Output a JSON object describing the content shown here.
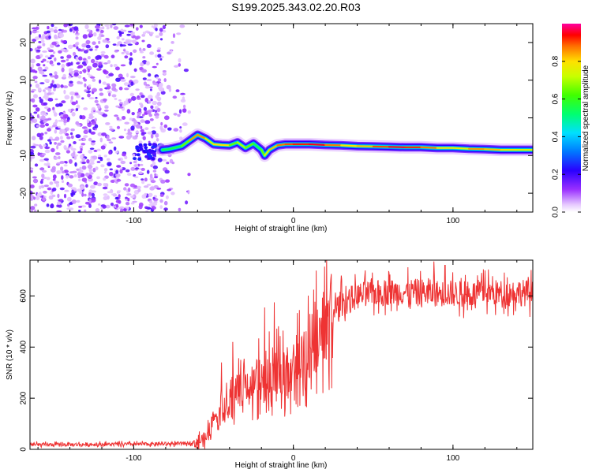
{
  "title": "S199.2025.343.02.20.R03",
  "chart_data": [
    {
      "type": "heatmap",
      "name": "spectrogram",
      "xlabel": "Height of straight line (km)",
      "ylabel": "Frequency (Hz)",
      "xlim": [
        -165,
        150
      ],
      "ylim": [
        -25,
        25
      ],
      "x_ticks": [
        -100,
        0,
        100
      ],
      "x_tick_labels": [
        "-100",
        "0",
        "100"
      ],
      "y_ticks": [
        -20,
        -10,
        0,
        10,
        20
      ],
      "y_tick_labels": [
        "-20",
        "-10",
        "0",
        "10",
        "20"
      ],
      "signal_onset_km": -82,
      "noise_region_km": [
        -165,
        -65
      ],
      "carrier_track": {
        "x": [
          -82,
          -78,
          -70,
          -65,
          -60,
          -55,
          -50,
          -45,
          -40,
          -35,
          -30,
          -25,
          -20,
          -18,
          -15,
          -10,
          -5,
          0,
          10,
          20,
          30,
          40,
          50,
          60,
          70,
          80,
          90,
          100,
          110,
          120,
          130,
          140,
          150
        ],
        "y": [
          -8.5,
          -8.3,
          -7.5,
          -6.0,
          -4.5,
          -5.5,
          -7.0,
          -7.2,
          -7.3,
          -6.5,
          -8.0,
          -6.8,
          -8.5,
          -10.0,
          -8.5,
          -7.3,
          -7.0,
          -7.0,
          -7.0,
          -7.2,
          -7.3,
          -7.5,
          -7.6,
          -7.7,
          -7.8,
          -7.8,
          -8.0,
          -8.0,
          -8.2,
          -8.3,
          -8.5,
          -8.5,
          -8.5
        ],
        "amplitude": [
          0.5,
          0.6,
          0.5,
          0.8,
          0.9,
          0.8,
          0.7,
          0.9,
          0.7,
          0.6,
          0.8,
          0.5,
          0.6,
          0.7,
          0.8,
          0.85,
          0.9,
          0.9,
          0.95,
          0.95,
          0.8,
          0.8,
          0.85,
          0.95,
          0.95,
          0.9,
          0.85,
          0.75,
          0.8,
          0.9,
          0.75,
          0.8,
          0.7
        ]
      }
    },
    {
      "type": "colorbar",
      "name": "amplitude-colorbar",
      "label": "Normalized spectral amplitude",
      "range": [
        0,
        1
      ],
      "ticks": [
        0.0,
        0.2,
        0.4,
        0.6,
        0.8
      ],
      "tick_labels": [
        "0.0",
        "0.2",
        "0.4",
        "0.6",
        "0.8"
      ]
    },
    {
      "type": "line",
      "name": "snr",
      "xlabel": "Height of straight line (km)",
      "ylabel": "SNR (10 * v/v)",
      "xlim": [
        -165,
        150
      ],
      "ylim": [
        0,
        740
      ],
      "x_ticks": [
        -100,
        0,
        100
      ],
      "x_tick_labels": [
        "-100",
        "0",
        "100"
      ],
      "y_ticks": [
        0,
        200,
        400,
        600
      ],
      "y_tick_labels": [
        "0",
        "200",
        "400",
        "600"
      ],
      "color": "#ee3333",
      "envelope": {
        "x": [
          -165,
          -100,
          -70,
          -62,
          -55,
          -50,
          -45,
          -40,
          -35,
          -30,
          -25,
          -20,
          -15,
          -10,
          -5,
          0,
          5,
          10,
          15,
          20,
          25,
          30,
          40,
          50,
          60,
          70,
          80,
          90,
          100,
          110,
          120,
          130,
          140,
          150
        ],
        "y": [
          18,
          20,
          22,
          28,
          40,
          120,
          200,
          215,
          225,
          235,
          260,
          285,
          300,
          320,
          300,
          330,
          360,
          400,
          460,
          500,
          540,
          570,
          600,
          610,
          615,
          615,
          615,
          610,
          610,
          605,
          615,
          610,
          615,
          610
        ]
      },
      "peaks": {
        "x": [
          -45,
          -38,
          -33,
          -18,
          -12,
          0,
          30,
          45,
          60,
          88,
          95,
          120
        ],
        "y": [
          340,
          420,
          350,
          555,
          575,
          410,
          680,
          700,
          690,
          735,
          720,
          700
        ]
      }
    }
  ]
}
